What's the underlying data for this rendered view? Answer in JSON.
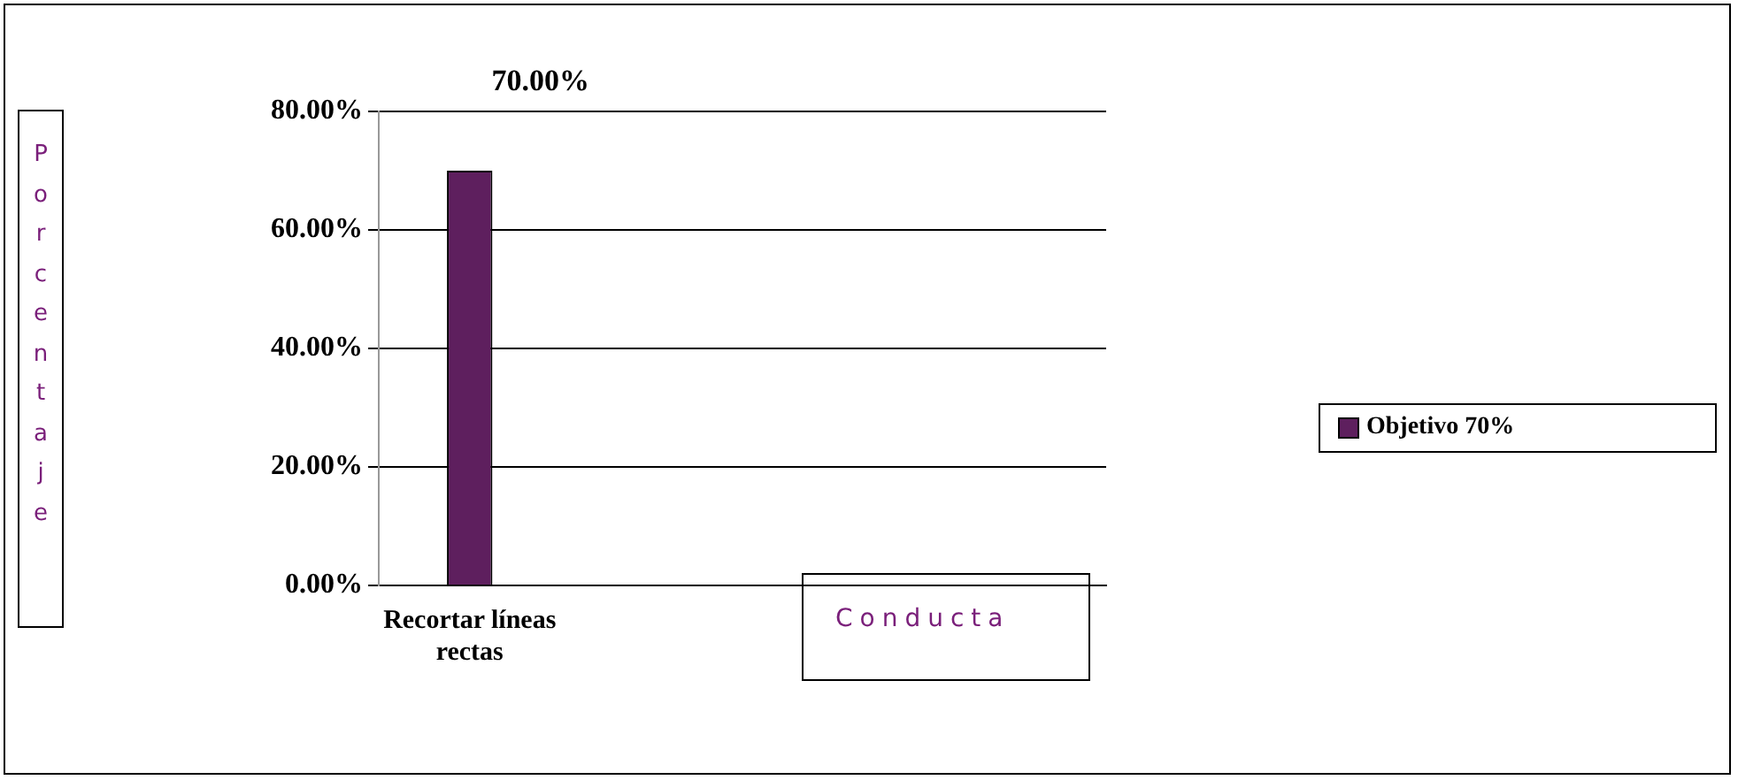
{
  "chart_data": {
    "type": "bar",
    "ylabel": "Porcentaje",
    "xlabel": "Conducta",
    "categories": [
      "Recortar líneas rectas",
      null,
      null,
      null
    ],
    "series": [
      {
        "name": "Objetivo 70%",
        "color": "#5e1f5e",
        "values": [
          70,
          null,
          null,
          null
        ]
      }
    ],
    "value_labels": [
      "70.00%",
      null,
      null,
      null
    ],
    "ylim": [
      0,
      80
    ],
    "yticks": [
      {
        "value": 0,
        "label": "0.00%"
      },
      {
        "value": 20,
        "label": "20.00%"
      },
      {
        "value": 40,
        "label": "40.00%"
      },
      {
        "value": 60,
        "label": "60.00%"
      },
      {
        "value": 80,
        "label": "80.00%"
      }
    ],
    "grid": "y",
    "legend": "right"
  }
}
